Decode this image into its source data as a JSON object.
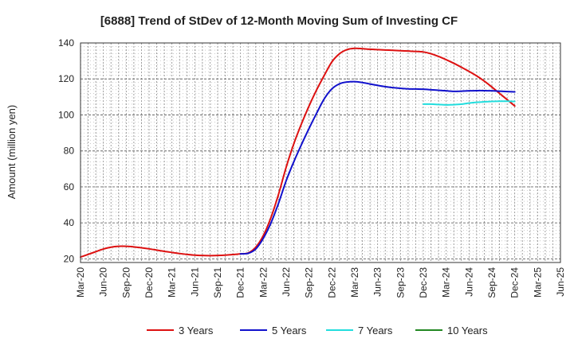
{
  "chart_data": {
    "type": "line",
    "title": "[6888]  Trend of StDev of 12-Month Moving Sum of Investing CF",
    "ylabel": "Amount (million yen)",
    "xlabel": "",
    "ylim": [
      18,
      140
    ],
    "yticks": [
      20,
      40,
      60,
      80,
      100,
      120,
      140
    ],
    "x_range": [
      "2020-03",
      "2025-06"
    ],
    "xtick_labels": [
      "Mar-20",
      "Jun-20",
      "Sep-20",
      "Dec-20",
      "Mar-21",
      "Jun-21",
      "Sep-21",
      "Dec-21",
      "Mar-22",
      "Jun-22",
      "Sep-22",
      "Dec-22",
      "Mar-23",
      "Jun-23",
      "Sep-23",
      "Dec-23",
      "Mar-24",
      "Jun-24",
      "Sep-24",
      "Dec-24",
      "Mar-25",
      "Jun-25"
    ],
    "grid": true,
    "legend_position": "bottom",
    "series": [
      {
        "name": "3 Years",
        "color": "#dd1111",
        "points": [
          [
            "2020-03",
            21
          ],
          [
            "2020-04",
            22.5
          ],
          [
            "2020-05",
            24
          ],
          [
            "2020-06",
            25.5
          ],
          [
            "2020-07",
            26.5
          ],
          [
            "2020-08",
            27
          ],
          [
            "2020-09",
            27
          ],
          [
            "2020-10",
            26.7
          ],
          [
            "2020-11",
            26.2
          ],
          [
            "2020-12",
            25.6
          ],
          [
            "2021-01",
            24.9
          ],
          [
            "2021-02",
            24.2
          ],
          [
            "2021-03",
            23.6
          ],
          [
            "2021-04",
            23
          ],
          [
            "2021-05",
            22.5
          ],
          [
            "2021-06",
            22.1
          ],
          [
            "2021-07",
            21.9
          ],
          [
            "2021-08",
            21.8
          ],
          [
            "2021-09",
            21.9
          ],
          [
            "2021-10",
            22.1
          ],
          [
            "2021-11",
            22.4
          ],
          [
            "2021-12",
            22.8
          ],
          [
            "2022-01",
            23.3
          ],
          [
            "2022-02",
            26.5
          ],
          [
            "2022-03",
            33
          ],
          [
            "2022-04",
            43
          ],
          [
            "2022-05",
            56
          ],
          [
            "2022-06",
            71
          ],
          [
            "2022-07",
            84
          ],
          [
            "2022-08",
            95
          ],
          [
            "2022-09",
            105
          ],
          [
            "2022-10",
            114
          ],
          [
            "2022-11",
            122
          ],
          [
            "2022-12",
            129.5
          ],
          [
            "2023-01",
            134
          ],
          [
            "2023-02",
            136.3
          ],
          [
            "2023-03",
            137
          ],
          [
            "2023-04",
            136.8
          ],
          [
            "2023-05",
            136.5
          ],
          [
            "2023-06",
            136.3
          ],
          [
            "2023-07",
            136.1
          ],
          [
            "2023-08",
            135.9
          ],
          [
            "2023-09",
            135.7
          ],
          [
            "2023-10",
            135.5
          ],
          [
            "2023-11",
            135.3
          ],
          [
            "2023-12",
            135
          ],
          [
            "2024-01",
            134
          ],
          [
            "2024-02",
            132.5
          ],
          [
            "2024-03",
            130.7
          ],
          [
            "2024-04",
            128.7
          ],
          [
            "2024-05",
            126.5
          ],
          [
            "2024-06",
            124.2
          ],
          [
            "2024-07",
            121.7
          ],
          [
            "2024-08",
            118.8
          ],
          [
            "2024-09",
            115.5
          ],
          [
            "2024-10",
            112
          ],
          [
            "2024-11",
            108.5
          ],
          [
            "2024-12",
            105
          ]
        ]
      },
      {
        "name": "5 Years",
        "color": "#1111cc",
        "points": [
          [
            "2021-12",
            22.8
          ],
          [
            "2022-01",
            23.1
          ],
          [
            "2022-02",
            25.5
          ],
          [
            "2022-03",
            31.5
          ],
          [
            "2022-04",
            40
          ],
          [
            "2022-05",
            51
          ],
          [
            "2022-06",
            63.5
          ],
          [
            "2022-07",
            74
          ],
          [
            "2022-08",
            83.5
          ],
          [
            "2022-09",
            92.5
          ],
          [
            "2022-10",
            101
          ],
          [
            "2022-11",
            109
          ],
          [
            "2022-12",
            114.5
          ],
          [
            "2023-01",
            117.3
          ],
          [
            "2023-02",
            118.3
          ],
          [
            "2023-03",
            118.5
          ],
          [
            "2023-04",
            118
          ],
          [
            "2023-05",
            117.2
          ],
          [
            "2023-06",
            116.4
          ],
          [
            "2023-07",
            115.7
          ],
          [
            "2023-08",
            115.2
          ],
          [
            "2023-09",
            114.8
          ],
          [
            "2023-10",
            114.5
          ],
          [
            "2023-11",
            114.4
          ],
          [
            "2023-12",
            114.3
          ],
          [
            "2024-01",
            114
          ],
          [
            "2024-02",
            113.7
          ],
          [
            "2024-03",
            113.4
          ],
          [
            "2024-04",
            113.1
          ],
          [
            "2024-05",
            113.2
          ],
          [
            "2024-06",
            113.4
          ],
          [
            "2024-07",
            113.5
          ],
          [
            "2024-08",
            113.5
          ],
          [
            "2024-09",
            113.4
          ],
          [
            "2024-10",
            113.2
          ],
          [
            "2024-11",
            113
          ],
          [
            "2024-12",
            112.8
          ]
        ]
      },
      {
        "name": "7 Years",
        "color": "#22dddd",
        "points": [
          [
            "2023-12",
            106
          ],
          [
            "2024-01",
            106
          ],
          [
            "2024-02",
            105.8
          ],
          [
            "2024-03",
            105.6
          ],
          [
            "2024-04",
            105.7
          ],
          [
            "2024-05",
            106
          ],
          [
            "2024-06",
            106.6
          ],
          [
            "2024-07",
            107
          ],
          [
            "2024-08",
            107.3
          ],
          [
            "2024-09",
            107.5
          ],
          [
            "2024-10",
            107.6
          ],
          [
            "2024-11",
            107.6
          ],
          [
            "2024-12",
            107.5
          ]
        ]
      },
      {
        "name": "10 Years",
        "color": "#228822",
        "points": []
      }
    ]
  }
}
